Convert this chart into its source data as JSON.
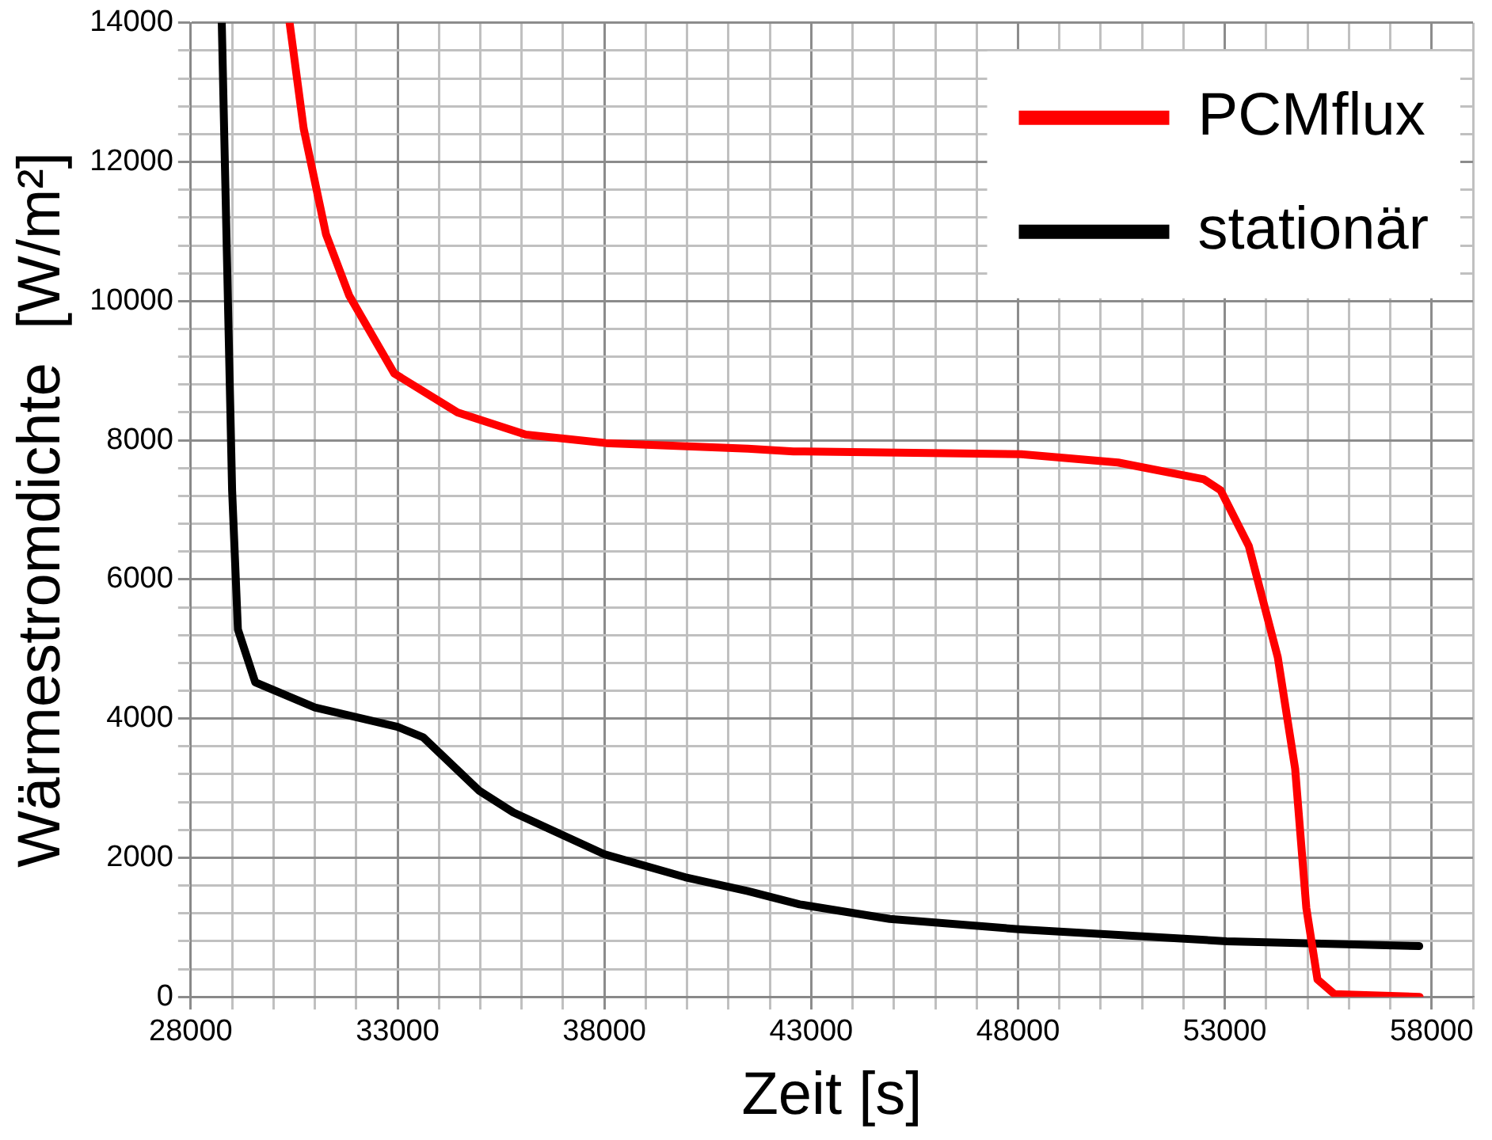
{
  "chart_data": {
    "type": "line",
    "xlabel": "Zeit [s]",
    "ylabel": "Wärmestromdichte  [W/m²]",
    "xlim": [
      28000,
      59000
    ],
    "xticks": [
      28000,
      {
        "value": 29000,
        "label": null
      },
      {
        "value": 30000,
        "label": null
      },
      {
        "value": 31000,
        "label": null
      },
      {
        "value": 32000,
        "label": null
      },
      33000,
      {
        "value": 34000,
        "label": null
      },
      {
        "value": 35000,
        "label": null
      },
      {
        "value": 36000,
        "label": null
      },
      {
        "value": 37000,
        "label": null
      },
      38000,
      {
        "value": 39000,
        "label": null
      },
      {
        "value": 40000,
        "label": null
      },
      {
        "value": 41000,
        "label": null
      },
      {
        "value": 42000,
        "label": null
      },
      43000,
      {
        "value": 44000,
        "label": null
      },
      {
        "value": 45000,
        "label": null
      },
      {
        "value": 46000,
        "label": null
      },
      {
        "value": 47000,
        "label": null
      },
      48000,
      {
        "value": 49000,
        "label": null
      },
      {
        "value": 50000,
        "label": null
      },
      {
        "value": 51000,
        "label": null
      },
      {
        "value": 52000,
        "label": null
      },
      53000,
      {
        "value": 54000,
        "label": null
      },
      {
        "value": 55000,
        "label": null
      },
      {
        "value": 56000,
        "label": null
      },
      {
        "value": 57000,
        "label": null
      },
      58000,
      {
        "value": 59000,
        "label": null
      }
    ],
    "ylim": [
      0,
      14000
    ],
    "yticks": [
      0,
      {
        "value": 400,
        "label": null
      },
      {
        "value": 800,
        "label": null
      },
      {
        "value": 1200,
        "label": null
      },
      {
        "value": 1600,
        "label": null
      },
      2000,
      {
        "value": 2400,
        "label": null
      },
      {
        "value": 2800,
        "label": null
      },
      {
        "value": 3200,
        "label": null
      },
      {
        "value": 3600,
        "label": null
      },
      4000,
      {
        "value": 4400,
        "label": null
      },
      {
        "value": 4800,
        "label": null
      },
      {
        "value": 5200,
        "label": null
      },
      {
        "value": 5600,
        "label": null
      },
      6000,
      {
        "value": 6400,
        "label": null
      },
      {
        "value": 6800,
        "label": null
      },
      {
        "value": 7200,
        "label": null
      },
      {
        "value": 7600,
        "label": null
      },
      8000,
      {
        "value": 8400,
        "label": null
      },
      {
        "value": 8800,
        "label": null
      },
      {
        "value": 9200,
        "label": null
      },
      {
        "value": 9600,
        "label": null
      },
      10000,
      {
        "value": 10400,
        "label": null
      },
      {
        "value": 10800,
        "label": null
      },
      {
        "value": 11200,
        "label": null
      },
      {
        "value": 11600,
        "label": null
      },
      12000,
      {
        "value": 12400,
        "label": null
      },
      {
        "value": 12800,
        "label": null
      },
      {
        "value": 13200,
        "label": null
      },
      {
        "value": 13600,
        "label": null
      },
      14000
    ],
    "grid": true,
    "legend": "top right",
    "marker": "none",
    "line_style": "solid",
    "series": [
      {
        "name": "PCMflux",
        "color": "#ff0000",
        "x": [
          30390,
          30730,
          31270,
          31830,
          32920,
          34450,
          36100,
          38030,
          41470,
          42570,
          48080,
          50420,
          52490,
          52900,
          53580,
          54280,
          54700,
          54970,
          55240,
          55650,
          57710
        ],
        "values": [
          14000,
          12480,
          10960,
          10080,
          8960,
          8400,
          8080,
          7960,
          7880,
          7840,
          7800,
          7680,
          7440,
          7280,
          6480,
          4880,
          3280,
          1280,
          250,
          40,
          0
        ]
      },
      {
        "name": "stationär",
        "color": "#000000",
        "x": [
          28750,
          29000,
          29140,
          29560,
          31000,
          33000,
          33620,
          34980,
          35800,
          38000,
          39950,
          41470,
          42720,
          44900,
          48080,
          53040,
          57700
        ],
        "values": [
          14000,
          7280,
          5280,
          4520,
          4160,
          3880,
          3730,
          2960,
          2650,
          2050,
          1720,
          1520,
          1330,
          1120,
          970,
          800,
          730
        ]
      }
    ]
  }
}
